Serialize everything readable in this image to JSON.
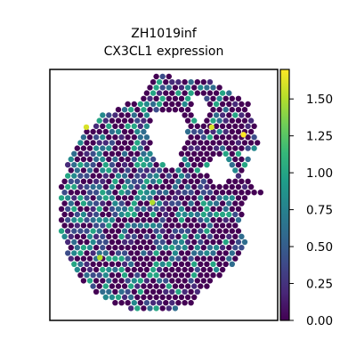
{
  "chart_data": {
    "type": "scatter",
    "subtype": "spatial-hexbin",
    "title": "ZH1019inf",
    "subtitle": "CX3CL1 expression",
    "xlabel": "",
    "ylabel": "",
    "colorbar": {
      "cmap": "viridis",
      "range": [
        0.0,
        1.7
      ],
      "ticks": [
        0.0,
        0.25,
        0.5,
        0.75,
        1.0,
        1.25,
        1.5
      ],
      "tick_labels": [
        "0.00",
        "0.25",
        "0.50",
        "0.75",
        "1.00",
        "1.25",
        "1.50"
      ]
    },
    "grid": false,
    "axes_ticks": false,
    "value_distribution": {
      "background": 0.0,
      "common_levels": [
        0.4,
        0.6,
        0.8,
        1.0
      ],
      "max": 1.7
    },
    "high_points": [
      {
        "x": 0.85,
        "y": 0.74,
        "value": 1.7
      },
      {
        "x": 0.71,
        "y": 0.77,
        "value": 1.6
      },
      {
        "x": 0.16,
        "y": 0.77,
        "value": 1.6
      },
      {
        "x": 0.45,
        "y": 0.47,
        "value": 1.5
      },
      {
        "x": 0.22,
        "y": 0.25,
        "value": 1.5
      }
    ]
  },
  "colors": {
    "viridis": [
      "#440154",
      "#482878",
      "#3e4989",
      "#31688e",
      "#26828e",
      "#1f9e89",
      "#35b779",
      "#6ece58",
      "#b5de2b",
      "#fde725"
    ]
  }
}
